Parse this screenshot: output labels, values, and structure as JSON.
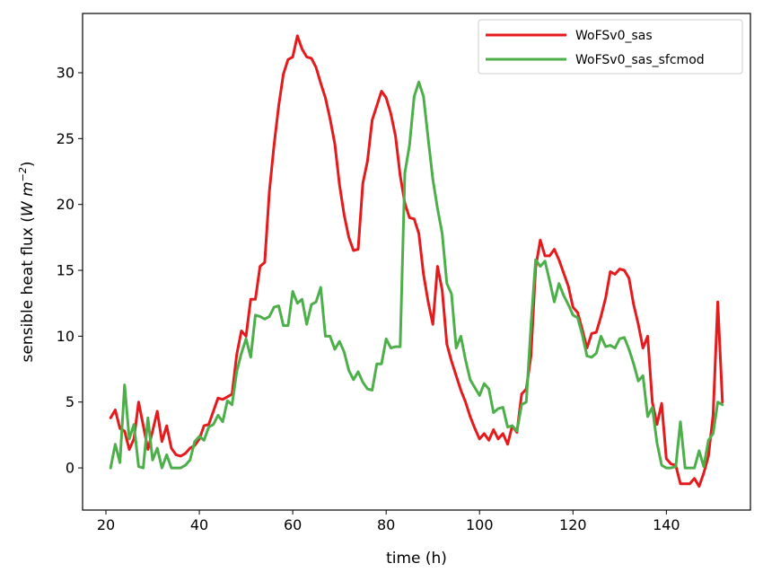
{
  "chart_data": {
    "type": "line",
    "title": "",
    "xlabel": "time (h)",
    "ylabel_main": "sensible heat flux (",
    "ylabel_unit_w": "W m",
    "ylabel_unit_exp": "−2",
    "ylabel_close": ")",
    "xlim": [
      15,
      158
    ],
    "ylim": [
      -3.2,
      34.5
    ],
    "xticks": [
      20,
      40,
      60,
      80,
      100,
      120,
      140
    ],
    "yticks": [
      0,
      5,
      10,
      15,
      20,
      25,
      30
    ],
    "grid": false,
    "legend_position": "top-right",
    "x": [
      21,
      22,
      23,
      24,
      25,
      26,
      27,
      28,
      29,
      30,
      31,
      32,
      33,
      34,
      35,
      36,
      37,
      38,
      39,
      40,
      41,
      42,
      43,
      44,
      45,
      46,
      47,
      48,
      49,
      50,
      51,
      52,
      53,
      54,
      55,
      56,
      57,
      58,
      59,
      60,
      61,
      62,
      63,
      64,
      65,
      66,
      67,
      68,
      69,
      70,
      71,
      72,
      73,
      74,
      75,
      76,
      77,
      78,
      79,
      80,
      81,
      82,
      83,
      84,
      85,
      86,
      87,
      88,
      89,
      90,
      91,
      92,
      93,
      94,
      95,
      96,
      97,
      98,
      99,
      100,
      101,
      102,
      103,
      104,
      105,
      106,
      107,
      108,
      109,
      110,
      111,
      112,
      113,
      114,
      115,
      116,
      117,
      118,
      119,
      120,
      121,
      122,
      123,
      124,
      125,
      126,
      127,
      128,
      129,
      130,
      131,
      132,
      133,
      134,
      135,
      136,
      137,
      138,
      139,
      140,
      141,
      142,
      143,
      144,
      145,
      146,
      147,
      148,
      149,
      150,
      151,
      152
    ],
    "series": [
      {
        "name": "WoFSv0_sas",
        "color": "#e41a1c",
        "values": [
          3.8,
          4.4,
          3.0,
          2.8,
          1.4,
          2.2,
          5.0,
          3.2,
          1.4,
          2.8,
          4.3,
          2.0,
          3.2,
          1.5,
          1.0,
          0.9,
          1.1,
          1.5,
          1.7,
          2.2,
          3.2,
          3.3,
          4.3,
          5.3,
          5.2,
          5.4,
          5.6,
          8.6,
          10.4,
          10.0,
          12.8,
          12.8,
          15.3,
          15.6,
          21.0,
          24.5,
          27.5,
          29.9,
          31.0,
          31.2,
          32.8,
          31.8,
          31.2,
          31.1,
          30.4,
          29.2,
          28.1,
          26.5,
          24.6,
          21.5,
          19.2,
          17.5,
          16.5,
          16.6,
          21.6,
          23.3,
          26.4,
          27.5,
          28.6,
          28.1,
          26.9,
          25.2,
          22.2,
          20.1,
          19.0,
          18.9,
          17.8,
          14.7,
          12.6,
          10.9,
          15.3,
          13.5,
          9.4,
          8.1,
          7.0,
          5.9,
          5.0,
          3.9,
          3.0,
          2.2,
          2.6,
          2.1,
          2.9,
          2.2,
          2.6,
          1.8,
          3.2,
          2.7,
          5.6,
          6.0,
          8.5,
          15.2,
          17.3,
          16.1,
          16.1,
          16.6,
          15.8,
          14.8,
          13.8,
          12.2,
          11.8,
          10.5,
          9.1,
          10.2,
          10.3,
          11.5,
          12.9,
          14.9,
          14.7,
          15.1,
          15.0,
          14.4,
          12.4,
          10.9,
          9.1,
          10.0,
          5.0,
          3.3,
          4.9,
          0.7,
          0.3,
          0.2,
          -1.2,
          -1.2,
          -1.2,
          -0.8,
          -1.4,
          -0.4,
          0.9,
          4.0,
          12.6,
          5.0
        ]
      },
      {
        "name": "WoFSv0_sas_sfcmod",
        "color": "#4daf4a",
        "values": [
          0.0,
          1.8,
          0.4,
          6.3,
          2.2,
          3.3,
          0.1,
          0.0,
          3.8,
          0.6,
          1.5,
          0.0,
          1.0,
          0.0,
          0.0,
          0.0,
          0.2,
          0.6,
          2.0,
          2.4,
          2.1,
          3.1,
          3.3,
          4.0,
          3.5,
          5.1,
          4.8,
          7.3,
          8.7,
          9.8,
          8.4,
          11.6,
          11.5,
          11.3,
          11.5,
          12.2,
          12.3,
          10.8,
          10.8,
          13.4,
          12.5,
          12.8,
          10.9,
          12.4,
          12.6,
          13.7,
          10.0,
          10.0,
          9.0,
          9.6,
          8.8,
          7.4,
          6.7,
          7.3,
          6.5,
          6.0,
          5.9,
          7.9,
          7.9,
          9.8,
          9.1,
          9.2,
          9.2,
          22.4,
          24.5,
          28.2,
          29.3,
          28.2,
          25.0,
          21.9,
          19.7,
          17.8,
          14.0,
          13.2,
          9.1,
          10.0,
          8.2,
          6.7,
          6.1,
          5.5,
          6.4,
          6.0,
          4.2,
          4.5,
          4.6,
          3.1,
          3.2,
          2.8,
          4.8,
          5.0,
          10.8,
          15.8,
          15.3,
          15.7,
          14.2,
          12.6,
          14.0,
          13.1,
          12.4,
          11.6,
          11.4,
          10.1,
          8.5,
          8.4,
          8.7,
          10.0,
          9.2,
          9.3,
          9.1,
          9.8,
          9.9,
          9.0,
          7.9,
          6.6,
          7.0,
          3.9,
          4.6,
          1.9,
          0.2,
          0.0,
          0.0,
          0.1,
          3.5,
          0.0,
          0.0,
          0.0,
          1.3,
          0.1,
          2.1,
          2.6,
          5.0,
          4.8
        ]
      }
    ]
  }
}
